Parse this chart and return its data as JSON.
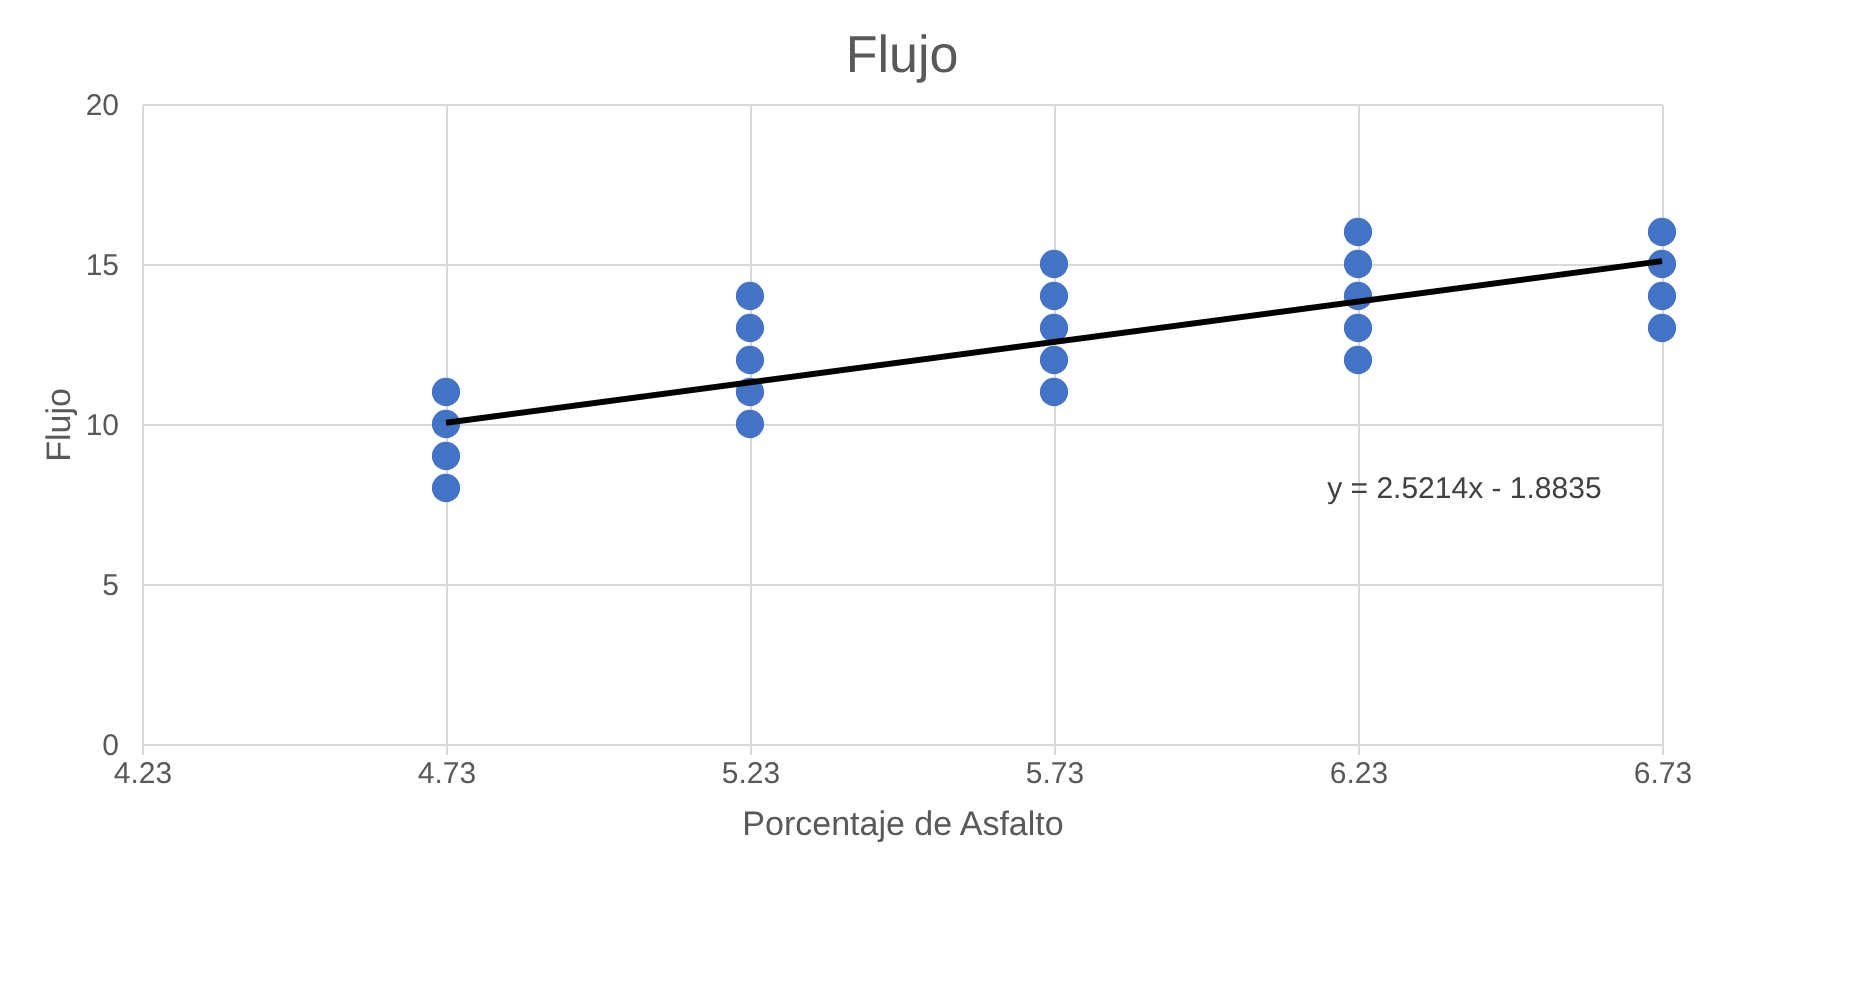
{
  "chart_data": {
    "type": "scatter",
    "title": "Flujo",
    "xlabel": "Porcentaje de Asfalto",
    "ylabel": "Flujo",
    "xlim": [
      4.23,
      6.73
    ],
    "xticks": [
      4.23,
      4.73,
      5.23,
      5.73,
      6.23,
      6.73
    ],
    "ylim": [
      0,
      20
    ],
    "yticks": [
      0,
      5,
      10,
      15,
      20
    ],
    "grid": true,
    "marker": "circle",
    "series": [
      {
        "color": "#4472c4",
        "x": [
          4.73,
          4.73,
          4.73,
          4.73,
          5.23,
          5.23,
          5.23,
          5.23,
          5.23,
          5.73,
          5.73,
          5.73,
          5.73,
          5.73,
          6.23,
          6.23,
          6.23,
          6.23,
          6.23,
          6.73,
          6.73,
          6.73,
          6.73
        ],
        "values": [
          8,
          9,
          10,
          11,
          10,
          11,
          12,
          13,
          14,
          11,
          12,
          13,
          14,
          15,
          12,
          13,
          14,
          15,
          16,
          13,
          14,
          15,
          16
        ]
      },
      {
        "type": "line",
        "marker": "none",
        "color": "#000000",
        "x": [
          4.73,
          6.73
        ],
        "values": [
          10.04,
          15.09
        ]
      }
    ],
    "annotations": [
      "y = 2.5214x - 1.8835"
    ]
  }
}
